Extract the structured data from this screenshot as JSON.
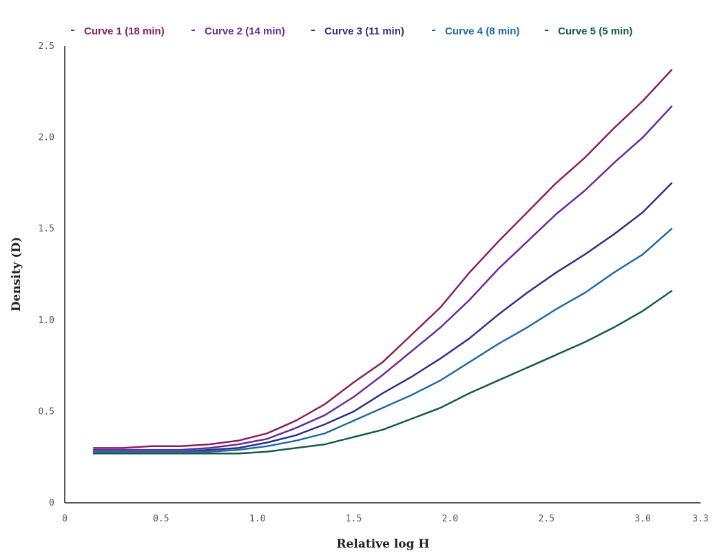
{
  "chart_data": {
    "type": "line",
    "title": "",
    "xlabel": "Relative log H",
    "ylabel": "Density (D)",
    "xlim": [
      0,
      3.3
    ],
    "ylim": [
      0,
      2.5
    ],
    "x_ticks": [
      0,
      0.5,
      1.0,
      1.5,
      2.0,
      2.5,
      3.0,
      3.3
    ],
    "x_tick_labels": [
      "0",
      "0.5",
      "1.0",
      "1.5",
      "2.0",
      "2.5",
      "3.0",
      "3.3"
    ],
    "y_ticks": [
      0,
      0.5,
      1.0,
      1.5,
      2.0,
      2.5
    ],
    "y_tick_labels": [
      "0",
      "0.5",
      "1.0",
      "1.5",
      "2.0",
      "2.5"
    ],
    "grid": false,
    "legend_position": "top",
    "x": [
      0.15,
      0.3,
      0.45,
      0.6,
      0.75,
      0.9,
      1.05,
      1.2,
      1.35,
      1.5,
      1.65,
      1.8,
      1.95,
      2.1,
      2.25,
      2.4,
      2.55,
      2.7,
      2.85,
      3.0,
      3.15
    ],
    "series": [
      {
        "name": "Curve 1 (18 min)",
        "color": "#8b1e5a",
        "values": [
          0.3,
          0.3,
          0.31,
          0.31,
          0.32,
          0.34,
          0.38,
          0.45,
          0.54,
          0.66,
          0.77,
          0.92,
          1.07,
          1.26,
          1.43,
          1.59,
          1.75,
          1.89,
          2.05,
          2.2,
          2.37
        ]
      },
      {
        "name": "Curve 2 (14 min)",
        "color": "#6a2a9a",
        "values": [
          0.29,
          0.29,
          0.29,
          0.29,
          0.3,
          0.32,
          0.35,
          0.41,
          0.48,
          0.58,
          0.7,
          0.83,
          0.96,
          1.11,
          1.28,
          1.43,
          1.58,
          1.71,
          1.86,
          2.0,
          2.17
        ]
      },
      {
        "name": "Curve 3 (11 min)",
        "color": "#2e2f85",
        "values": [
          0.28,
          0.28,
          0.28,
          0.28,
          0.29,
          0.3,
          0.33,
          0.37,
          0.43,
          0.5,
          0.6,
          0.69,
          0.79,
          0.9,
          1.03,
          1.15,
          1.26,
          1.36,
          1.47,
          1.59,
          1.75
        ]
      },
      {
        "name": "Curve 4 (8 min)",
        "color": "#1f6aa5",
        "values": [
          0.28,
          0.28,
          0.28,
          0.28,
          0.28,
          0.29,
          0.31,
          0.34,
          0.38,
          0.45,
          0.52,
          0.59,
          0.67,
          0.77,
          0.87,
          0.96,
          1.06,
          1.15,
          1.26,
          1.36,
          1.5
        ]
      },
      {
        "name": "Curve 5 (5 min)",
        "color": "#145a4a",
        "values": [
          0.27,
          0.27,
          0.27,
          0.27,
          0.27,
          0.27,
          0.28,
          0.3,
          0.32,
          0.36,
          0.4,
          0.46,
          0.52,
          0.6,
          0.67,
          0.74,
          0.81,
          0.88,
          0.96,
          1.05,
          1.16
        ]
      }
    ]
  }
}
